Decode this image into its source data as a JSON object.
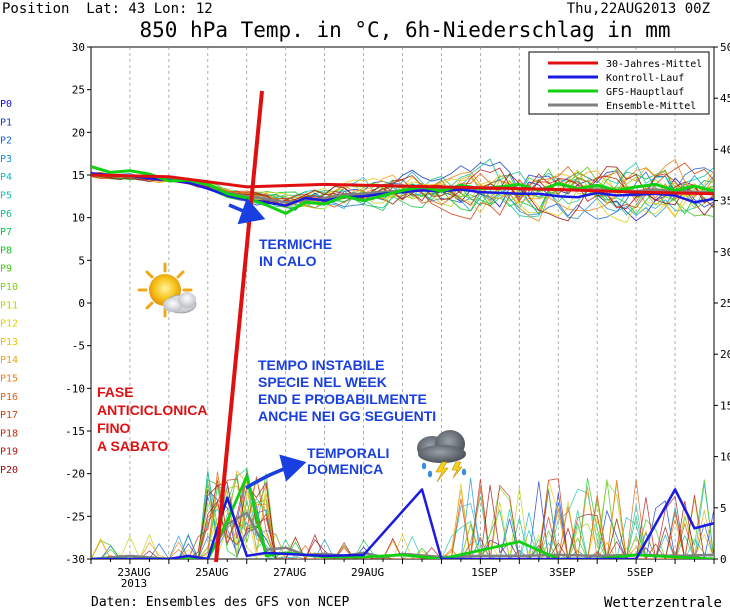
{
  "header": {
    "position": "Position  Lat: 43 Lon: 12",
    "date": "Thu,22AUG2013 00Z",
    "title": "850 hPa Temp. in °C, 6h-Niederschlag in mm"
  },
  "footer": {
    "source": "Daten: Ensembles des GFS von NCEP",
    "brand": "Wetterzentrale"
  },
  "chart_data": {
    "type": "line",
    "left_axis": {
      "min": -30,
      "max": 30,
      "step": 5,
      "unit": "°C"
    },
    "right_axis": {
      "min": 0,
      "max": 50,
      "step": 5,
      "unit": "mm"
    },
    "x_axis": {
      "start": "22AUG2013 00Z",
      "end": "07SEP2013 00Z",
      "tick_labels": [
        {
          "text": "23AUG",
          "sub": "2013",
          "day": 1
        },
        {
          "text": "25AUG",
          "day": 3
        },
        {
          "text": "27AUG",
          "day": 5
        },
        {
          "text": "29AUG",
          "day": 7
        },
        {
          "text": "1SEP",
          "day": 10
        },
        {
          "text": "3SEP",
          "day": 12
        },
        {
          "text": "5SEP",
          "day": 14
        }
      ]
    },
    "legend": {
      "placement": "top-right",
      "items": [
        {
          "label": "30-Jahres-Mittel",
          "color": "#e01010"
        },
        {
          "label": "Kontroll-Lauf",
          "color": "#1a1ae0"
        },
        {
          "label": "GFS-Hauptlauf",
          "color": "#10d010"
        },
        {
          "label": "Ensemble-Mittel",
          "color": "#808080"
        }
      ]
    },
    "members": [
      "P0",
      "P1",
      "P2",
      "P3",
      "P4",
      "P5",
      "P6",
      "P7",
      "P8",
      "P9",
      "P10",
      "P11",
      "P12",
      "P13",
      "P14",
      "P15",
      "P16",
      "P17",
      "P18",
      "P19",
      "P20"
    ],
    "member_colors": [
      "#1010c8",
      "#1438d0",
      "#1464d8",
      "#1490d8",
      "#10b4c8",
      "#10c4a8",
      "#10c080",
      "#10c050",
      "#10c820",
      "#40c810",
      "#80d010",
      "#c0d010",
      "#e0d010",
      "#f0c010",
      "#f0a010",
      "#f08010",
      "#e06010",
      "#d04010",
      "#c02810",
      "#b01818",
      "#a01010"
    ],
    "temperature": {
      "30_jahres_mittel": [
        [
          0,
          15.0
        ],
        [
          2,
          14.8
        ],
        [
          4,
          13.6
        ],
        [
          6,
          13.9
        ],
        [
          8,
          13.7
        ],
        [
          10,
          13.5
        ],
        [
          12,
          13.3
        ],
        [
          14,
          13.0
        ],
        [
          16,
          12.8
        ]
      ],
      "kontroll_lauf": [
        [
          0,
          15.2
        ],
        [
          0.5,
          15.0
        ],
        [
          1,
          14.9
        ],
        [
          1.5,
          14.6
        ],
        [
          2,
          14.4
        ],
        [
          2.5,
          14.1
        ],
        [
          3,
          13.4
        ],
        [
          3.5,
          12.6
        ],
        [
          4,
          12.1
        ],
        [
          4.5,
          11.8
        ],
        [
          5,
          11.4
        ],
        [
          5.5,
          12.3
        ],
        [
          6,
          12.0
        ],
        [
          6.5,
          12.4
        ],
        [
          7,
          12.5
        ],
        [
          7.5,
          12.8
        ],
        [
          8,
          13.0
        ],
        [
          8.5,
          13.2
        ],
        [
          9,
          13.1
        ],
        [
          9.5,
          13.3
        ],
        [
          10,
          13.0
        ],
        [
          10.5,
          12.9
        ],
        [
          11,
          12.8
        ],
        [
          11.5,
          12.8
        ],
        [
          12,
          12.5
        ],
        [
          12.5,
          12.4
        ],
        [
          13,
          12.9
        ],
        [
          13.5,
          12.6
        ],
        [
          14,
          12.7
        ],
        [
          14.5,
          12.8
        ],
        [
          15,
          12.6
        ],
        [
          15.5,
          11.8
        ],
        [
          16,
          12.2
        ]
      ],
      "gfs_hauptlauf": [
        [
          0,
          16.0
        ],
        [
          0.5,
          15.3
        ],
        [
          1,
          15.5
        ],
        [
          1.5,
          15.1
        ],
        [
          2,
          14.3
        ],
        [
          2.5,
          14.4
        ],
        [
          3,
          13.9
        ],
        [
          3.5,
          12.8
        ],
        [
          4,
          12.3
        ],
        [
          4.5,
          11.5
        ],
        [
          5,
          10.5
        ],
        [
          5.5,
          11.8
        ],
        [
          6,
          11.6
        ],
        [
          6.5,
          12.5
        ],
        [
          7,
          12.0
        ],
        [
          7.5,
          12.6
        ],
        [
          8,
          13.2
        ],
        [
          8.5,
          13.6
        ],
        [
          9,
          13.1
        ],
        [
          9.5,
          13.8
        ],
        [
          10,
          13.4
        ],
        [
          10.5,
          13.6
        ],
        [
          11,
          13.9
        ],
        [
          11.5,
          13.2
        ],
        [
          12,
          14.0
        ],
        [
          12.5,
          13.4
        ],
        [
          13,
          13.8
        ],
        [
          13.5,
          13.2
        ],
        [
          14,
          13.6
        ],
        [
          14.5,
          13.9
        ],
        [
          15,
          13.2
        ],
        [
          15.5,
          13.7
        ],
        [
          16,
          13.1
        ]
      ],
      "ensemble_mittel": [
        [
          0,
          15.0
        ],
        [
          0.5,
          14.9
        ],
        [
          1,
          14.8
        ],
        [
          1.5,
          14.6
        ],
        [
          2,
          14.5
        ],
        [
          2.5,
          14.3
        ],
        [
          3,
          13.8
        ],
        [
          3.5,
          12.9
        ],
        [
          4,
          12.5
        ],
        [
          4.5,
          12.2
        ],
        [
          5,
          11.8
        ],
        [
          5.5,
          12.0
        ],
        [
          6,
          12.3
        ],
        [
          6.5,
          12.7
        ],
        [
          7,
          12.8
        ],
        [
          7.5,
          13.0
        ],
        [
          8,
          13.2
        ],
        [
          8.5,
          13.4
        ],
        [
          9,
          13.3
        ],
        [
          9.5,
          13.5
        ],
        [
          10,
          13.4
        ],
        [
          10.5,
          13.5
        ],
        [
          11,
          13.4
        ],
        [
          11.5,
          13.4
        ],
        [
          12,
          13.3
        ],
        [
          12.5,
          13.2
        ],
        [
          13,
          13.3
        ],
        [
          13.5,
          13.2
        ],
        [
          14,
          13.1
        ],
        [
          14.5,
          13.3
        ],
        [
          15,
          13.1
        ],
        [
          15.5,
          13.0
        ],
        [
          16,
          13.0
        ]
      ]
    },
    "precipitation_mm": {
      "kontroll_lauf": [
        [
          0,
          0
        ],
        [
          2,
          0
        ],
        [
          2.5,
          0.3
        ],
        [
          3,
          0
        ],
        [
          3.5,
          6
        ],
        [
          4,
          0.3
        ],
        [
          4.5,
          0.6
        ],
        [
          5,
          0.5
        ],
        [
          6,
          0.3
        ],
        [
          7,
          0.4
        ],
        [
          8.5,
          6.8
        ],
        [
          9,
          0
        ],
        [
          12,
          0
        ],
        [
          13,
          0
        ],
        [
          14,
          0
        ],
        [
          15,
          6.8
        ],
        [
          15.5,
          3
        ],
        [
          16,
          3.5
        ]
      ],
      "gfs_hauptlauf": [
        [
          0,
          0
        ],
        [
          1,
          0
        ],
        [
          2,
          0
        ],
        [
          3,
          0
        ],
        [
          3.5,
          3.7
        ],
        [
          4,
          8.1
        ],
        [
          4.5,
          0.3
        ],
        [
          5,
          0.6
        ],
        [
          5.5,
          0.4
        ],
        [
          6,
          0.2
        ],
        [
          7,
          0.2
        ],
        [
          8,
          0.4
        ],
        [
          9,
          0
        ],
        [
          11,
          1.7
        ],
        [
          12,
          0
        ],
        [
          13,
          0
        ],
        [
          14,
          0.4
        ],
        [
          15,
          0.2
        ],
        [
          16,
          0
        ]
      ],
      "ensemble_mittel": [
        [
          0,
          0
        ],
        [
          1,
          0.3
        ],
        [
          2,
          0
        ],
        [
          3,
          0
        ],
        [
          3.5,
          3.4
        ],
        [
          4,
          4.5
        ],
        [
          4.5,
          0.9
        ],
        [
          5,
          1.1
        ],
        [
          5.5,
          0.4
        ],
        [
          6,
          0.5
        ],
        [
          6.5,
          0.3
        ],
        [
          7,
          0.6
        ],
        [
          7.5,
          0.2
        ],
        [
          8,
          0.5
        ],
        [
          9,
          0.2
        ],
        [
          10,
          0.3
        ],
        [
          11,
          0.3
        ],
        [
          12,
          0.4
        ],
        [
          13,
          0.3
        ],
        [
          14,
          0.4
        ],
        [
          15,
          0.3
        ],
        [
          16,
          0.4
        ]
      ]
    }
  },
  "annotations": {
    "termiche": "TERMICHE\nIN CALO",
    "tempo": "TEMPO INSTABILE\nSPECIE NEL WEEK\nEND E PROBABILMENTE\nANCHE NEI GG SEGUENTI",
    "temporali": "TEMPORALI\nDOMENICA",
    "fase": "FASE\nANTICICLONICA\nFINO\nA SABATO"
  },
  "colors": {
    "annotation_blue": "#1a3fe0",
    "annotation_red": "#e01010"
  },
  "icons": [
    "sun-cloud-icon",
    "thunderstorm-icon"
  ]
}
